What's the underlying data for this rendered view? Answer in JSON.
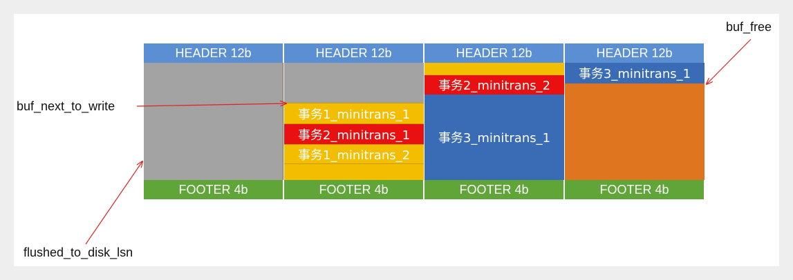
{
  "columns": [
    {
      "header": "HEADER 12b",
      "footer": "FOOTER 4b",
      "blocks": []
    },
    {
      "header": "HEADER 12b",
      "footer": "FOOTER 4b",
      "blocks": [
        "事务1_minitrans_1",
        "事务2_minitrans_1",
        "事务1_minitrans_2"
      ]
    },
    {
      "header": "HEADER 12b",
      "footer": "FOOTER 4b",
      "blocks": [
        "事务2_minitrans_2",
        "事务3_minitrans_1"
      ]
    },
    {
      "header": "HEADER 12b",
      "footer": "FOOTER 4b",
      "blocks": [
        "事务3_minitrans_1"
      ]
    }
  ],
  "labels": {
    "buf_free": "buf_free",
    "buf_next_to_write": "buf_next_to_write",
    "flushed_to_disk_lsn": "flushed_to_disk_lsn"
  },
  "colors": {
    "header": "#5b8fd3",
    "footer": "#5fa537",
    "written": "#a3a3a3",
    "trx1": "#f3bd00",
    "trx2": "#e81010",
    "trx3": "#3a6bb5",
    "free": "#e07520",
    "arrow": "#e0201e"
  }
}
